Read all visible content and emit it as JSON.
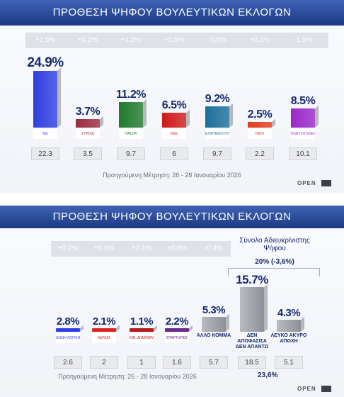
{
  "panels": [
    {
      "title": "ΠΡΟΘΕΣΗ ΨΗΦΟΥ ΒΟΥΛΕΥΤΙΚΩΝ ΕΚΛΟΓΩΝ",
      "footnote": "Προηγούμενη Μέτρηση: 26 - 28 Ιανουαρίου 2026",
      "brand": "OPEN",
      "brand_sub": "NETWORK",
      "chart_data": {
        "type": "bar",
        "categories": [
          "ΝΔ",
          "ΣΥΡΙΖΑ",
          "ΠΑΣΟΚ",
          "ΚΚΕ",
          "ΕΛΛΗΝΙΚΗ ΛΥΣΗ",
          "ΝΙΚΗ",
          "ΠΛΕΥΣΗ ΕΛΕΥΘΕΡΙΑΣ"
        ],
        "values": [
          24.9,
          3.7,
          11.2,
          6.5,
          9.2,
          2.5,
          8.5
        ],
        "value_labels": [
          "24.9%",
          "3.7%",
          "11.2%",
          "6.5%",
          "9.2%",
          "2.5%",
          "8.5%"
        ],
        "changes": [
          "+2.6%",
          "+0.2%",
          "+1.5%",
          "+0,5%",
          "-0,5%",
          "+0,3%",
          "-1.6%"
        ],
        "previous": [
          "22.3",
          "3.5",
          "9.7",
          "6",
          "9.7",
          "2.2",
          "10.1"
        ],
        "logo_text": [
          "ΝΔ",
          "ΣΥΡΙΖΑ",
          "ΠΑΣΟΚ",
          "ΚΚΕ",
          "ΕΛΛΗΝΙΚΗ ΛΥΣΗ",
          "ΝΙΚΗ",
          "ΠΛΕΥΣΗ ΕΛΕΥΘΕΡΙΑΣ"
        ],
        "colors": [
          "#2f3fe0",
          "#9c2a3e",
          "#1f7a2c",
          "#d11a1a",
          "#1b6f9a",
          "#e23a1c",
          "#9a27c9"
        ],
        "ylim": [
          0,
          26
        ]
      }
    },
    {
      "title": "ΠΡΟΘΕΣΗ ΨΗΦΟΥ ΒΟΥΛΕΥΤΙΚΩΝ ΕΚΛΟΓΩΝ",
      "footnote": "Προηγούμενη Μέτρηση: 26 - 28 Ιανουαρίου 2026",
      "brand": "OPEN",
      "brand_sub": "NETWORK",
      "summary_title": "Σύνολο Αδιευκρίνιστης Ψήφου",
      "summary_value": "20% (-3,6%)",
      "total_label": "23,6%",
      "chart_data": {
        "type": "bar",
        "categories": [
          "ΦΩΝΗ ΛΟΓΙΚΗΣ",
          "ΜΕΡΑ25",
          "ΚΙΝΗΜΑ ΔΗΜΟΚΡΑΤΙΑΣ",
          "ΣΠΑΡΤΙΑΤΕΣ",
          "ΑΛΛΟ ΚΟΜΜΑ",
          "ΔΕΝ ΑΠΟΦΑΣΙΣΑ ΔΕΝ ΑΠΑΝΤΩ",
          "ΛΕΥΚΟ ΑΚΥΡΟ ΑΠΟΧΗ"
        ],
        "values": [
          2.8,
          2.1,
          1.1,
          2.2,
          5.3,
          15.7,
          4.3
        ],
        "value_labels": [
          "2.8%",
          "2.1%",
          "1.1%",
          "2.2%",
          "5.3%",
          "15.7%",
          "4.3%"
        ],
        "changes": [
          "+0.2%",
          "+0.1%",
          "+0.1%",
          "+0.6%",
          "-0.4%",
          "",
          ""
        ],
        "previous": [
          "2.6",
          "2",
          "1",
          "1.6",
          "5.7",
          "18.5",
          "5.1"
        ],
        "logo_text": [
          "ΦΩΝΗ ΛΟΓΙΚΗΣ",
          "ΜέΡΑ25",
          "ΚΙΝ. ΔΗΜΟΚΡΑΤΙΑΣ",
          "ΣΠΑΡΤΙΑΤΕΣ",
          "",
          "",
          ""
        ],
        "text_labels": [
          "",
          "",
          "",
          "",
          "ΑΛΛΟ ΚΟΜΜΑ",
          "ΔΕΝ ΑΠΟΦΑΣΙΣΑ ΔΕΝ ΑΠΑΝΤΩ",
          "ΛΕΥΚΟ ΑΚΥΡΟ ΑΠΟΧΗ"
        ],
        "colors": [
          "#2f3fe0",
          "#d8261c",
          "#b51a1a",
          "#6a2a8c",
          "#9a9ca3",
          "#9a9ca3",
          "#9a9ca3"
        ],
        "ylim": [
          0,
          17
        ]
      }
    }
  ]
}
